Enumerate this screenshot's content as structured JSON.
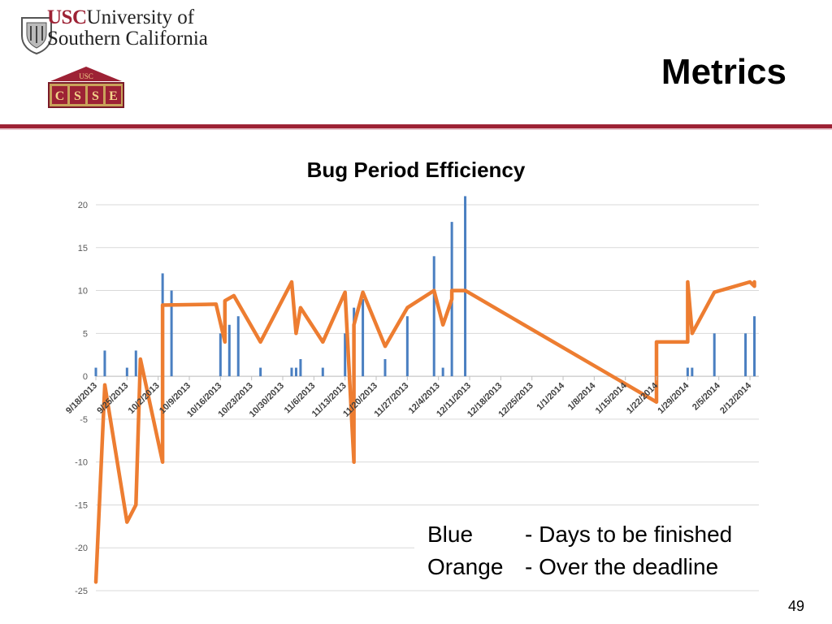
{
  "header": {
    "usc_abbrev": "USC",
    "university_line1": "University of",
    "university_line2": "Southern California",
    "csse_top": "USC",
    "csse_letters": [
      "C",
      "S",
      "S",
      "E"
    ],
    "slide_title": "Metrics"
  },
  "colors": {
    "brand": "#9d2235",
    "blue_series": "#4a7fc1",
    "orange_series": "#ed7d31"
  },
  "legend": {
    "blue_name": "Blue",
    "blue_desc": "- Days to be finished",
    "orange_name": "Orange",
    "orange_desc": "- Over the deadline"
  },
  "page_number": "49",
  "chart_data": {
    "type": "bar",
    "title": "Bug Period Efficiency",
    "ylim": [
      -25,
      20
    ],
    "yticks": [
      20,
      15,
      10,
      5,
      0,
      -5,
      -10,
      -15,
      -20,
      -25
    ],
    "x_range": [
      "9/18/2013",
      "2/14/2014"
    ],
    "x_tick_labels": [
      "9/18/2013",
      "9/25/2013",
      "10/2/2013",
      "10/9/2013",
      "10/16/2013",
      "10/23/2013",
      "10/30/2013",
      "11/6/2013",
      "11/13/2013",
      "11/20/2013",
      "11/27/2013",
      "12/4/2013",
      "12/11/2013",
      "12/18/2013",
      "12/25/2013",
      "1/1/2014",
      "1/8/2014",
      "1/15/2014",
      "1/22/2014",
      "1/29/2014",
      "2/5/2014",
      "2/12/2014"
    ],
    "grid": true,
    "series": [
      {
        "name": "Blue",
        "kind": "bar",
        "points": [
          {
            "x": "9/18/2013",
            "y": 1
          },
          {
            "x": "9/20/2013",
            "y": 3
          },
          {
            "x": "9/25/2013",
            "y": 1
          },
          {
            "x": "9/27/2013",
            "y": 3
          },
          {
            "x": "10/3/2013",
            "y": 12
          },
          {
            "x": "10/5/2013",
            "y": 10
          },
          {
            "x": "10/16/2013",
            "y": 5
          },
          {
            "x": "10/18/2013",
            "y": 6
          },
          {
            "x": "10/20/2013",
            "y": 7
          },
          {
            "x": "10/25/2013",
            "y": 1
          },
          {
            "x": "11/1/2013",
            "y": 1
          },
          {
            "x": "11/2/2013",
            "y": 1
          },
          {
            "x": "11/3/2013",
            "y": 2
          },
          {
            "x": "11/8/2013",
            "y": 1
          },
          {
            "x": "11/13/2013",
            "y": 5
          },
          {
            "x": "11/15/2013",
            "y": 8
          },
          {
            "x": "11/17/2013",
            "y": 9
          },
          {
            "x": "11/22/2013",
            "y": 2
          },
          {
            "x": "11/27/2013",
            "y": 7
          },
          {
            "x": "12/3/2013",
            "y": 14
          },
          {
            "x": "12/5/2013",
            "y": 1
          },
          {
            "x": "12/7/2013",
            "y": 18
          },
          {
            "x": "12/10/2013",
            "y": 21
          },
          {
            "x": "1/29/2014",
            "y": 1
          },
          {
            "x": "1/30/2014",
            "y": 1
          },
          {
            "x": "2/4/2014",
            "y": 5
          },
          {
            "x": "2/11/2014",
            "y": 5
          },
          {
            "x": "2/13/2014",
            "y": 7
          }
        ]
      },
      {
        "name": "Orange",
        "kind": "line",
        "points": [
          {
            "x": "9/18/2013",
            "y": -24
          },
          {
            "x": "9/20/2013",
            "y": -1
          },
          {
            "x": "9/25/2013",
            "y": -17
          },
          {
            "x": "9/27/2013",
            "y": -15
          },
          {
            "x": "9/28/2013",
            "y": 2
          },
          {
            "x": "10/3/2013",
            "y": -10
          },
          {
            "x": "10/3/2013",
            "y": 8.3
          },
          {
            "x": "10/15/2013",
            "y": 8.4
          },
          {
            "x": "10/17/2013",
            "y": 4
          },
          {
            "x": "10/17/2013",
            "y": 8.8
          },
          {
            "x": "10/19/2013",
            "y": 9.4
          },
          {
            "x": "10/25/2013",
            "y": 4
          },
          {
            "x": "11/1/2013",
            "y": 11
          },
          {
            "x": "11/2/2013",
            "y": 5
          },
          {
            "x": "11/3/2013",
            "y": 8
          },
          {
            "x": "11/8/2013",
            "y": 4
          },
          {
            "x": "11/13/2013",
            "y": 9.8
          },
          {
            "x": "11/15/2013",
            "y": -10
          },
          {
            "x": "11/15/2013",
            "y": 6
          },
          {
            "x": "11/17/2013",
            "y": 9.8
          },
          {
            "x": "11/22/2013",
            "y": 3.5
          },
          {
            "x": "11/27/2013",
            "y": 8
          },
          {
            "x": "12/3/2013",
            "y": 10
          },
          {
            "x": "12/5/2013",
            "y": 6
          },
          {
            "x": "12/7/2013",
            "y": 9
          },
          {
            "x": "12/7/2013",
            "y": 10
          },
          {
            "x": "12/10/2013",
            "y": 10
          },
          {
            "x": "1/22/2014",
            "y": -3
          },
          {
            "x": "1/22/2014",
            "y": 4
          },
          {
            "x": "1/29/2014",
            "y": 4
          },
          {
            "x": "1/29/2014",
            "y": 11
          },
          {
            "x": "1/30/2014",
            "y": 5
          },
          {
            "x": "2/4/2014",
            "y": 9.8
          },
          {
            "x": "2/12/2014",
            "y": 11
          },
          {
            "x": "2/13/2014",
            "y": 10.5
          },
          {
            "x": "2/13/2014",
            "y": 11
          }
        ]
      }
    ]
  }
}
